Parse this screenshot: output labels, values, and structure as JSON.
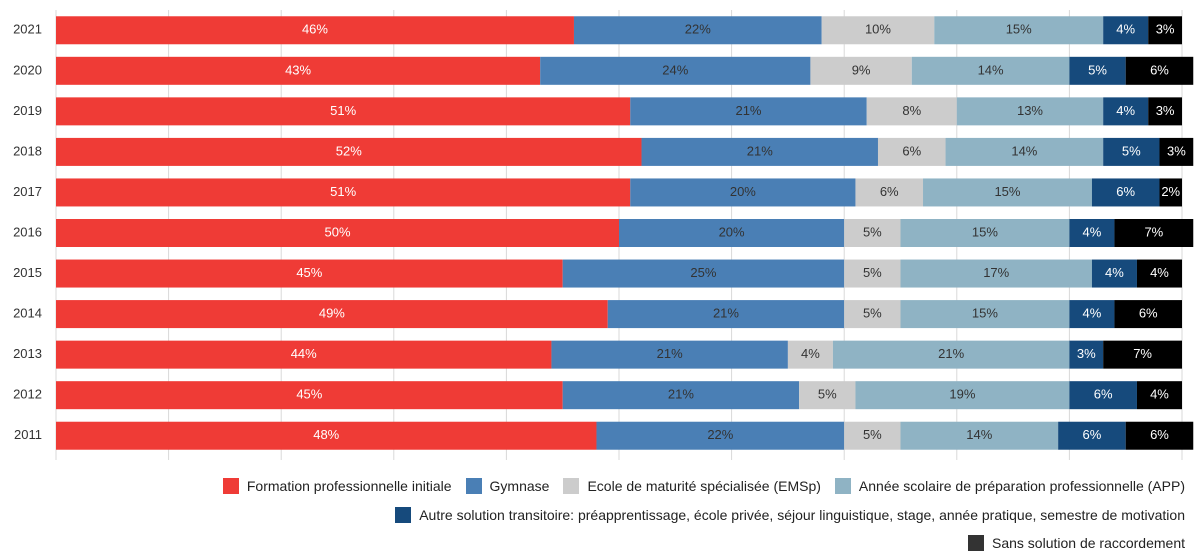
{
  "chart_data": {
    "type": "bar",
    "orientation": "horizontal",
    "stacked": true,
    "categories": [
      "2021",
      "2020",
      "2019",
      "2018",
      "2017",
      "2016",
      "2015",
      "2014",
      "2013",
      "2012",
      "2011"
    ],
    "xlim": [
      0,
      100
    ],
    "xticks": [
      0,
      10,
      20,
      30,
      40,
      50,
      60,
      70,
      80,
      90,
      100
    ],
    "grid": true,
    "series": [
      {
        "name": "Formation professionnelle initiale",
        "color": "#ef3b36",
        "label_color": "#ffffff",
        "values": [
          46,
          43,
          51,
          52,
          51,
          50,
          45,
          49,
          44,
          45,
          48
        ],
        "value_labels": [
          "46%",
          "43%",
          "51%",
          "52%",
          "51%",
          "50%",
          "45%",
          "49%",
          "44%",
          "45%",
          "48%"
        ]
      },
      {
        "name": "Gymnase",
        "color": "#4a7fb5",
        "label_color": "#333333",
        "values": [
          22,
          24,
          21,
          21,
          20,
          20,
          25,
          21,
          21,
          21,
          22
        ],
        "value_labels": [
          "22%",
          "24%",
          "21%",
          "21%",
          "20%",
          "20%",
          "25%",
          "21%",
          "21%",
          "21%",
          "22%"
        ]
      },
      {
        "name": "Ecole de maturité spécialisée (EMSp)",
        "color": "#cccccc",
        "label_color": "#333333",
        "values": [
          10,
          9,
          8,
          6,
          6,
          5,
          5,
          5,
          4,
          5,
          5
        ],
        "value_labels": [
          "10%",
          "9%",
          "8%",
          "6%",
          "6%",
          "5%",
          "5%",
          "5%",
          "4%",
          "5%",
          "5%"
        ]
      },
      {
        "name": "Année scolaire de préparation professionnelle (APP)",
        "color": "#8fb3c4",
        "label_color": "#333333",
        "values": [
          15,
          14,
          13,
          14,
          15,
          15,
          17,
          15,
          21,
          19,
          14
        ],
        "value_labels": [
          "15%",
          "14%",
          "13%",
          "14%",
          "15%",
          "15%",
          "17%",
          "15%",
          "21%",
          "19%",
          "14%"
        ]
      },
      {
        "name": "Autre solution transitoire: préapprentissage, école privée, séjour linguistique, stage, année pratique, semestre de motivation",
        "color": "#164a7c",
        "label_color": "#ffffff",
        "values": [
          4,
          5,
          4,
          5,
          6,
          4,
          4,
          4,
          3,
          6,
          6
        ],
        "value_labels": [
          "4%",
          "5%",
          "4%",
          "5%",
          "6%",
          "4%",
          "4%",
          "4%",
          "3%",
          "6%",
          "6%"
        ]
      },
      {
        "name": "Sans solution de raccordement",
        "color": "#000000",
        "legend_color": "#333333",
        "label_color": "#ffffff",
        "values": [
          3,
          6,
          3,
          3,
          2,
          7,
          4,
          6,
          7,
          4,
          6
        ],
        "value_labels": [
          "3%",
          "6%",
          "3%",
          "3%",
          "2%",
          "7%",
          "4%",
          "6%",
          "7%",
          "4%",
          "6%"
        ]
      }
    ]
  }
}
